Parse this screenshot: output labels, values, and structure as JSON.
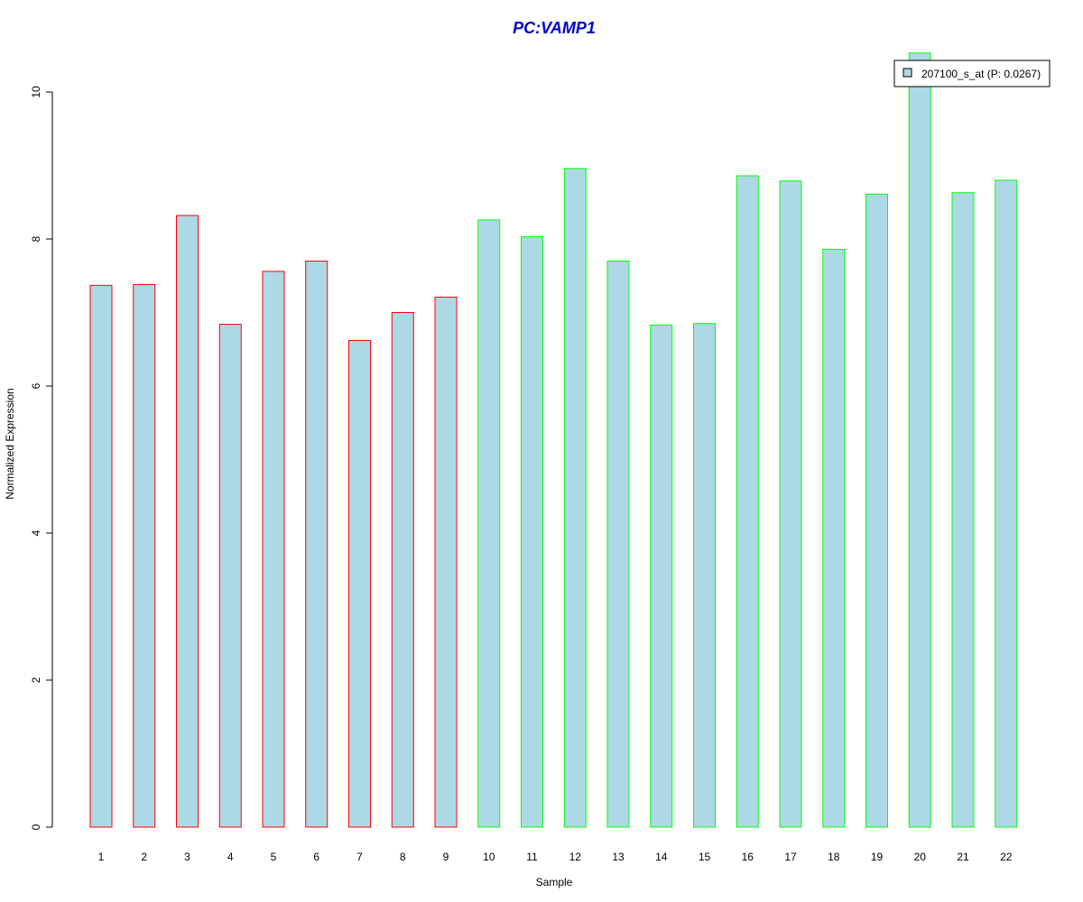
{
  "chart_data": {
    "type": "bar",
    "title": "PC:VAMP1",
    "xlabel": "Sample",
    "ylabel": "Normalized Expression",
    "ylim": [
      0,
      10
    ],
    "yticks": [
      0,
      2,
      4,
      6,
      8,
      10
    ],
    "categories": [
      "1",
      "2",
      "3",
      "4",
      "5",
      "6",
      "7",
      "8",
      "9",
      "10",
      "11",
      "12",
      "13",
      "14",
      "15",
      "16",
      "17",
      "18",
      "19",
      "20",
      "21",
      "22"
    ],
    "series": [
      {
        "name": "207100_s_at (P: 0.0267)",
        "values": [
          7.37,
          7.38,
          8.32,
          6.84,
          7.56,
          7.7,
          6.62,
          7.0,
          7.21,
          8.26,
          8.03,
          8.96,
          7.7,
          6.83,
          6.85,
          8.86,
          8.79,
          7.86,
          8.61,
          10.53,
          8.63,
          8.8
        ]
      }
    ],
    "bar_border_colors": [
      "#ff0000",
      "#ff0000",
      "#ff0000",
      "#ff0000",
      "#ff0000",
      "#ff0000",
      "#ff0000",
      "#ff0000",
      "#ff0000",
      "#00ff00",
      "#00ff00",
      "#00ff00",
      "#00ff00",
      "#00ff00",
      "#00ff00",
      "#00ff00",
      "#00ff00",
      "#00ff00",
      "#00ff00",
      "#00ff00",
      "#00ff00",
      "#00ff00"
    ],
    "bar_fill_color": "#add8e6",
    "title_color": "#0000cd",
    "legend_placement": "top-right",
    "grid": false
  }
}
